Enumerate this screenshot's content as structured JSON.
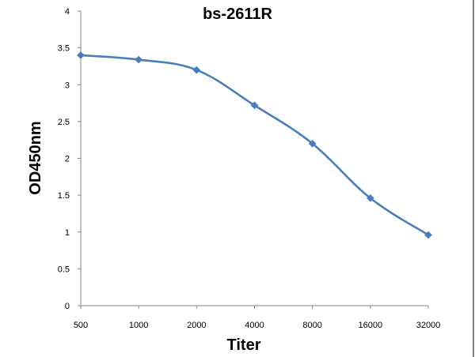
{
  "chart_data": {
    "type": "line",
    "title": "bs-2611R",
    "xlabel": "Titer",
    "ylabel": "OD450nm",
    "categories": [
      "500",
      "1000",
      "2000",
      "4000",
      "8000",
      "16000",
      "32000"
    ],
    "series": [
      {
        "values": [
          3.4,
          3.34,
          3.2,
          2.72,
          2.2,
          1.46,
          0.96
        ]
      }
    ],
    "ylim": [
      0,
      4
    ],
    "yticks": [
      "0",
      "0.5",
      "1",
      "1.5",
      "2",
      "2.5",
      "3",
      "3.5",
      "4"
    ],
    "grid": false,
    "legend": "none",
    "line_color": "#4A7EBB",
    "marker": "diamond"
  }
}
